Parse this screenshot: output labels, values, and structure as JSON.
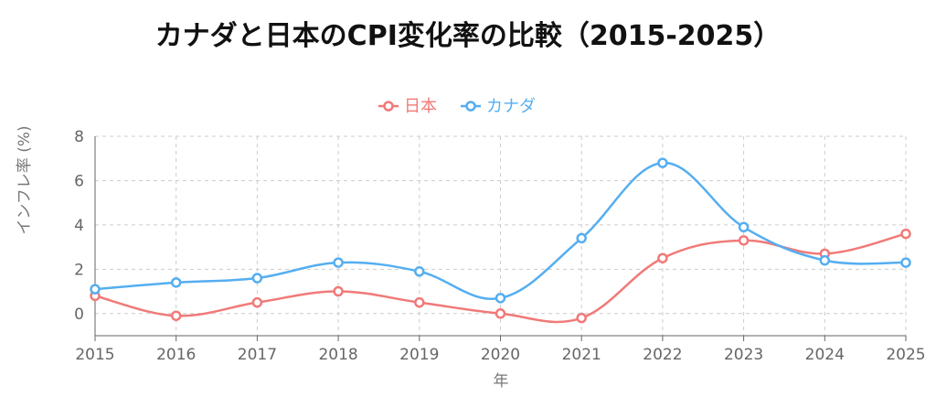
{
  "chart_data": {
    "type": "line",
    "title": "カナダと日本のCPI変化率の比較（2015-2025）",
    "xlabel": "年",
    "ylabel": "インフレ率 (%)",
    "x": [
      2015,
      2016,
      2017,
      2018,
      2019,
      2020,
      2021,
      2022,
      2023,
      2024,
      2025
    ],
    "ylim": [
      -1,
      8
    ],
    "yticks": [
      0,
      2,
      4,
      6,
      8
    ],
    "grid": true,
    "legend_position": "top-center",
    "series": [
      {
        "name": "日本",
        "color": "#f07a78",
        "values": [
          0.8,
          -0.1,
          0.5,
          1.0,
          0.5,
          0.0,
          -0.2,
          2.5,
          3.3,
          2.7,
          3.6
        ]
      },
      {
        "name": "カナダ",
        "color": "#55aef0",
        "values": [
          1.1,
          1.4,
          1.6,
          2.3,
          1.9,
          0.7,
          3.4,
          6.8,
          3.9,
          2.4,
          2.3
        ]
      }
    ]
  }
}
